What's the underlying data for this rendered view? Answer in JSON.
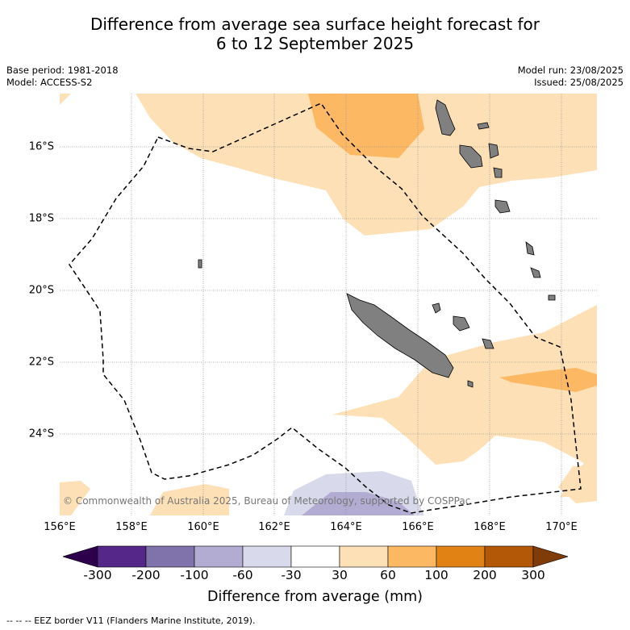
{
  "title": {
    "line1": "Difference from average sea surface height forecast for",
    "line2": "6 to 12 September 2025"
  },
  "meta": {
    "base_period": "Base period: 1981-2018",
    "model": "Model: ACCESS-S2",
    "model_run": "Model run: 23/08/2025",
    "issued": "Issued: 25/08/2025"
  },
  "map": {
    "lat_labels": [
      "16°S",
      "18°S",
      "20°S",
      "22°S",
      "24°S"
    ],
    "lon_labels": [
      "156°E",
      "158°E",
      "160°E",
      "162°E",
      "164°E",
      "166°E",
      "168°E",
      "170°E"
    ],
    "copyright": "© Commonwealth of Australia 2025, Bureau of Meteorology, supported by COSPPac",
    "land_color": "#808080",
    "eez_border_style": "dashed"
  },
  "colorbar": {
    "title": "Difference from average (mm)",
    "tick_labels": [
      "-300",
      "-200",
      "-100",
      "-60",
      "-30",
      "30",
      "60",
      "100",
      "200",
      "300"
    ],
    "colors": [
      "#2d004b",
      "#542788",
      "#8073ac",
      "#b2abd2",
      "#d8daeb",
      "#ffffff",
      "#fee0b6",
      "#fdb863",
      "#e08214",
      "#b35806",
      "#7f3b08"
    ]
  },
  "footer": "--  --  -- EEZ border V11 (Flanders Marine Institute, 2019)."
}
